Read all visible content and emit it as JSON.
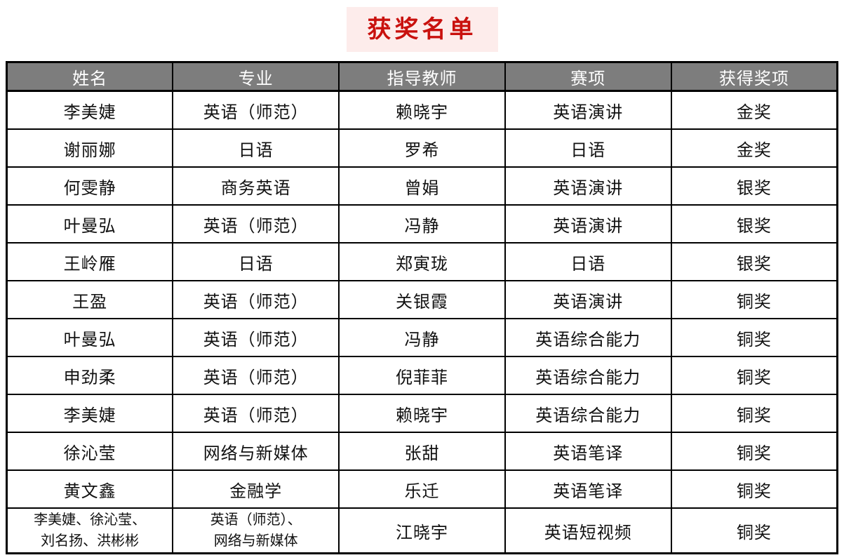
{
  "title": "获奖名单",
  "colors": {
    "title_text": "#c9110e",
    "title_background": "#fdeceb",
    "header_background": "#7d7d7d",
    "header_text": "#ffffff",
    "border": "#000000",
    "page_background": "#ffffff"
  },
  "table": {
    "headers": [
      "姓名",
      "专业",
      "指导教师",
      "赛项",
      "获得奖项"
    ],
    "rows": [
      [
        "李美婕",
        "英语（师范）",
        "赖晓宇",
        "英语演讲",
        "金奖"
      ],
      [
        "谢丽娜",
        "日语",
        "罗希",
        "日语",
        "金奖"
      ],
      [
        "何雯静",
        "商务英语",
        "曾娟",
        "英语演讲",
        "银奖"
      ],
      [
        "叶曼弘",
        "英语（师范）",
        "冯静",
        "英语演讲",
        "银奖"
      ],
      [
        "王岭雁",
        "日语",
        "郑寅珑",
        "日语",
        "银奖"
      ],
      [
        "王盈",
        "英语（师范）",
        "关银霞",
        "英语演讲",
        "铜奖"
      ],
      [
        "叶曼弘",
        "英语（师范）",
        "冯静",
        "英语综合能力",
        "铜奖"
      ],
      [
        "申劲柔",
        "英语（师范）",
        "倪菲菲",
        "英语综合能力",
        "铜奖"
      ],
      [
        "李美婕",
        "英语（师范）",
        "赖晓宇",
        "英语综合能力",
        "铜奖"
      ],
      [
        "徐沁莹",
        "网络与新媒体",
        "张甜",
        "英语笔译",
        "铜奖"
      ],
      [
        "黄文鑫",
        "金融学",
        "乐迁",
        "英语笔译",
        "铜奖"
      ],
      [
        "李美婕、徐沁莹、\n刘名扬、洪彬彬",
        "英语（师范）、\n网络与新媒体",
        "江晓宇",
        "英语短视频",
        "铜奖"
      ]
    ]
  }
}
